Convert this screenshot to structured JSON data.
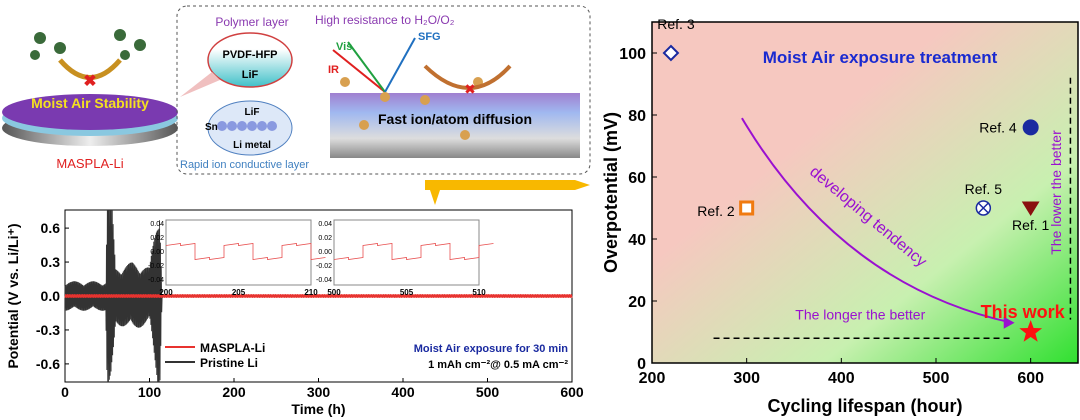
{
  "schematic": {
    "disk_label": "Moist Air Stability",
    "product_label": "MASPLA-Li",
    "polymer_title": "Polymer layer",
    "bubble1": [
      "PVDF-HFP",
      "LiF"
    ],
    "bubble2": [
      "LiF",
      "Sn",
      "Li metal"
    ],
    "conductive_label": "Rapid ion conductive layer",
    "resistance_title": "High resistance to H₂O/O₂",
    "beams": [
      "Vis",
      "SFG",
      "IR"
    ],
    "diffusion_label": "Fast ion/atom diffusion"
  },
  "chart_data": [
    {
      "type": "line",
      "xlabel": "Time (h)",
      "ylabel": "Potential (V vs. Li/Li⁺)",
      "xlim": [
        0,
        600
      ],
      "ylim": [
        -0.76,
        0.76
      ],
      "xticks": [
        "0",
        "100",
        "200",
        "300",
        "400",
        "500",
        "600"
      ],
      "yticks": [
        "0.6",
        "0.3",
        "0.0",
        "-0.3",
        "-0.6"
      ],
      "series": [
        {
          "name": "MASPLA-Li",
          "color": "#e8332f",
          "amplitude": 0.015,
          "x_range": [
            0,
            600
          ]
        },
        {
          "name": "Pristine Li",
          "color": "#333333",
          "envelope": [
            [
              0,
              0.13
            ],
            [
              48,
              0.13
            ],
            [
              50,
              0.9
            ],
            [
              55,
              0.9
            ],
            [
              60,
              0.25
            ],
            [
              80,
              0.3
            ],
            [
              100,
              0.25
            ],
            [
              112,
              0.9
            ],
            [
              115,
              0.0
            ]
          ]
        }
      ],
      "annotation_1": "Moist Air exposure for 30 min",
      "annotation_2": "1 mAh cm⁻²@ 0.5 mA cm⁻²",
      "insets": [
        {
          "xlim": [
            200,
            210
          ],
          "xticks": [
            "200",
            "205",
            "210"
          ],
          "yticks": [
            "0.04",
            "0.02",
            "0.00",
            "-0.02",
            "-0.04"
          ]
        },
        {
          "xlim": [
            500,
            510
          ],
          "xticks": [
            "500",
            "505",
            "510"
          ],
          "yticks": [
            "0.04",
            "0.02",
            "0.00",
            "-0.02",
            "-0.04"
          ]
        }
      ]
    },
    {
      "type": "scatter",
      "title": "Moist Air exposure treatment",
      "xlabel": "Cycling lifespan (hour)",
      "ylabel": "Overpotential (mV)",
      "xlim": [
        200,
        650
      ],
      "ylim": [
        0,
        110
      ],
      "xticks": [
        "200",
        "300",
        "400",
        "500",
        "600"
      ],
      "yticks": [
        "0",
        "20",
        "40",
        "60",
        "80",
        "100"
      ],
      "points": [
        {
          "label": "Ref. 3",
          "x": 220,
          "y": 100,
          "marker": "diamond",
          "color": "#1a2aa0"
        },
        {
          "label": "Ref. 2",
          "x": 300,
          "y": 50,
          "marker": "square",
          "color": "#f07a10"
        },
        {
          "label": "Ref. 5",
          "x": 550,
          "y": 50,
          "marker": "circle-x",
          "color": "#1a2aa0"
        },
        {
          "label": "Ref. 1",
          "x": 600,
          "y": 50,
          "marker": "triangle",
          "color": "#8a1010"
        },
        {
          "label": "Ref. 4",
          "x": 600,
          "y": 76,
          "marker": "sphere",
          "color": "#1a2aa0"
        },
        {
          "label": "This work",
          "x": 600,
          "y": 10,
          "marker": "star",
          "color": "#ff1010"
        }
      ],
      "trend_label": "developing tendency",
      "x_arrow_label": "The longer the better",
      "y_arrow_label": "The lower the better"
    }
  ]
}
